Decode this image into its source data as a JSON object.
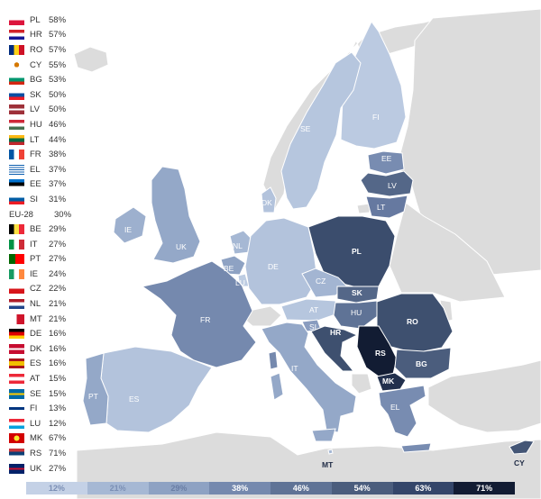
{
  "colors": {
    "non_eu": "#dcdcdc",
    "sea": "#ffffff"
  },
  "legend": [
    {
      "code": "PL",
      "pct": "58%",
      "flag": "pl",
      "color": "#3b4d6d"
    },
    {
      "code": "HR",
      "pct": "57%",
      "flag": "hr",
      "color": "#3e506f"
    },
    {
      "code": "RO",
      "pct": "57%",
      "flag": "ro",
      "color": "#3e506f"
    },
    {
      "code": "CY",
      "pct": "55%",
      "flag": "cy",
      "color": "#445676"
    },
    {
      "code": "BG",
      "pct": "53%",
      "flag": "bg",
      "color": "#4b5d7d"
    },
    {
      "code": "SK",
      "pct": "50%",
      "flag": "sk",
      "color": "#546788"
    },
    {
      "code": "LV",
      "pct": "50%",
      "flag": "lv",
      "color": "#546788"
    },
    {
      "code": "HU",
      "pct": "46%",
      "flag": "hu",
      "color": "#5f7396"
    },
    {
      "code": "LT",
      "pct": "44%",
      "flag": "lt",
      "color": "#6679a0"
    },
    {
      "code": "FR",
      "pct": "38%",
      "flag": "fr",
      "color": "#7589ae"
    },
    {
      "code": "EL",
      "pct": "37%",
      "flag": "el",
      "color": "#788cb1"
    },
    {
      "code": "EE",
      "pct": "37%",
      "flag": "ee",
      "color": "#788cb1"
    },
    {
      "code": "SI",
      "pct": "31%",
      "flag": "si",
      "color": "#899cbf"
    },
    {
      "code": "EU-28",
      "pct": "30%",
      "flag": "",
      "color": ""
    },
    {
      "code": "BE",
      "pct": "29%",
      "flag": "be",
      "color": "#8ea2c3"
    },
    {
      "code": "IT",
      "pct": "27%",
      "flag": "it",
      "color": "#94a8c8"
    },
    {
      "code": "PT",
      "pct": "27%",
      "flag": "pt",
      "color": "#94a8c8"
    },
    {
      "code": "IE",
      "pct": "24%",
      "flag": "ie",
      "color": "#9db0ce"
    },
    {
      "code": "CZ",
      "pct": "22%",
      "flag": "cz",
      "color": "#a3b5d2"
    },
    {
      "code": "NL",
      "pct": "21%",
      "flag": "nl",
      "color": "#a6b8d4"
    },
    {
      "code": "MT",
      "pct": "21%",
      "flag": "mt",
      "color": "#a6b8d4"
    },
    {
      "code": "DE",
      "pct": "16%",
      "flag": "de",
      "color": "#b3c3dc"
    },
    {
      "code": "DK",
      "pct": "16%",
      "flag": "dk",
      "color": "#b3c3dc"
    },
    {
      "code": "ES",
      "pct": "16%",
      "flag": "es",
      "color": "#b3c3dc"
    },
    {
      "code": "AT",
      "pct": "15%",
      "flag": "at",
      "color": "#b6c6de"
    },
    {
      "code": "SE",
      "pct": "15%",
      "flag": "se",
      "color": "#b6c6de"
    },
    {
      "code": "FI",
      "pct": "13%",
      "flag": "fi",
      "color": "#bbcae1"
    },
    {
      "code": "LU",
      "pct": "12%",
      "flag": "lu",
      "color": "#bdcce2"
    },
    {
      "code": "MK",
      "pct": "67%",
      "flag": "mk",
      "color": "#22304d"
    },
    {
      "code": "RS",
      "pct": "71%",
      "flag": "rs",
      "color": "#121c33"
    },
    {
      "code": "UK",
      "pct": "27%",
      "flag": "uk",
      "color": "#94a8c8"
    }
  ],
  "map_labels": {
    "FI": "FI",
    "SE": "SE",
    "EE": "EE",
    "LV": "LV",
    "LT": "LT",
    "DK": "DK",
    "IE": "IE",
    "UK": "UK",
    "NL": "NL",
    "BE": "BE",
    "LU": "LU",
    "DE": "DE",
    "PL": "PL",
    "CZ": "CZ",
    "SK": "SK",
    "FR": "FR",
    "AT": "AT",
    "HU": "HU",
    "RO": "RO",
    "SI": "SI",
    "HR": "HR",
    "RS": "RS",
    "BG": "BG",
    "MK": "MK",
    "IT": "IT",
    "PT": "PT",
    "ES": "ES",
    "EL": "EL",
    "MT": "MT",
    "CY": "CY"
  },
  "colorbar": {
    "labels": [
      "12%",
      "21%",
      "29%",
      "38%",
      "46%",
      "54%",
      "63%",
      "71%"
    ],
    "colors": [
      "#c4d1e6",
      "#a6b8d4",
      "#8ea2c3",
      "#7589ae",
      "#5f7396",
      "#4b5d7d",
      "#34466a",
      "#121c33"
    ],
    "text_colors": [
      "#7b8fb5",
      "#7b8fb5",
      "#6a7ea5",
      "#ffffff",
      "#ffffff",
      "#ffffff",
      "#ffffff",
      "#ffffff"
    ]
  }
}
